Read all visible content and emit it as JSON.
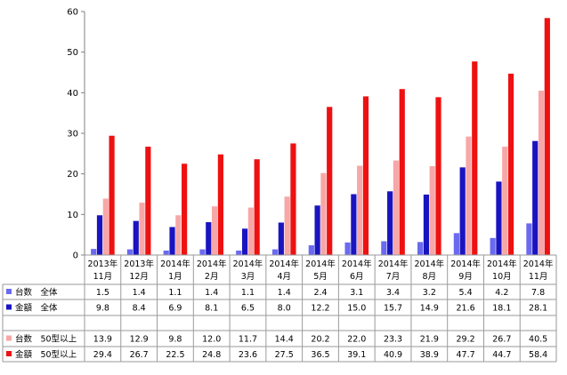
{
  "chart_data": {
    "type": "bar",
    "categories": [
      [
        "2013年",
        "11月"
      ],
      [
        "2013年",
        "12月"
      ],
      [
        "2014年",
        "1月"
      ],
      [
        "2014年",
        "2月"
      ],
      [
        "2014年",
        "3月"
      ],
      [
        "2014年",
        "4月"
      ],
      [
        "2014年",
        "5月"
      ],
      [
        "2014年",
        "6月"
      ],
      [
        "2014年",
        "7月"
      ],
      [
        "2014年",
        "8月"
      ],
      [
        "2014年",
        "9月"
      ],
      [
        "2014年",
        "10月"
      ],
      [
        "2014年",
        "11月"
      ]
    ],
    "series": [
      {
        "name": "台数　全体",
        "color": "#6a6af0",
        "values": [
          1.5,
          1.4,
          1.1,
          1.4,
          1.1,
          1.4,
          2.4,
          3.1,
          3.4,
          3.2,
          5.4,
          4.2,
          7.8
        ]
      },
      {
        "name": "金額　全体",
        "color": "#1a14c0",
        "values": [
          9.8,
          8.4,
          6.9,
          8.1,
          6.5,
          8.0,
          12.2,
          15.0,
          15.7,
          14.9,
          21.6,
          18.1,
          28.1
        ]
      },
      {
        "name": "台数　50型以上",
        "color": "#f7a7a7",
        "values": [
          13.9,
          12.9,
          9.8,
          12.0,
          11.7,
          14.4,
          20.2,
          22.0,
          23.3,
          21.9,
          29.2,
          26.7,
          40.5
        ]
      },
      {
        "name": "金額　50型以上",
        "color": "#ee1111",
        "values": [
          29.4,
          26.7,
          22.5,
          24.8,
          23.6,
          27.5,
          36.5,
          39.1,
          40.9,
          38.9,
          47.7,
          44.7,
          58.4
        ]
      }
    ],
    "ylim": [
      0,
      60
    ],
    "yticks": [
      0,
      10,
      20,
      30,
      40,
      50,
      60
    ],
    "grid": false,
    "legend": "data-table-rows"
  }
}
